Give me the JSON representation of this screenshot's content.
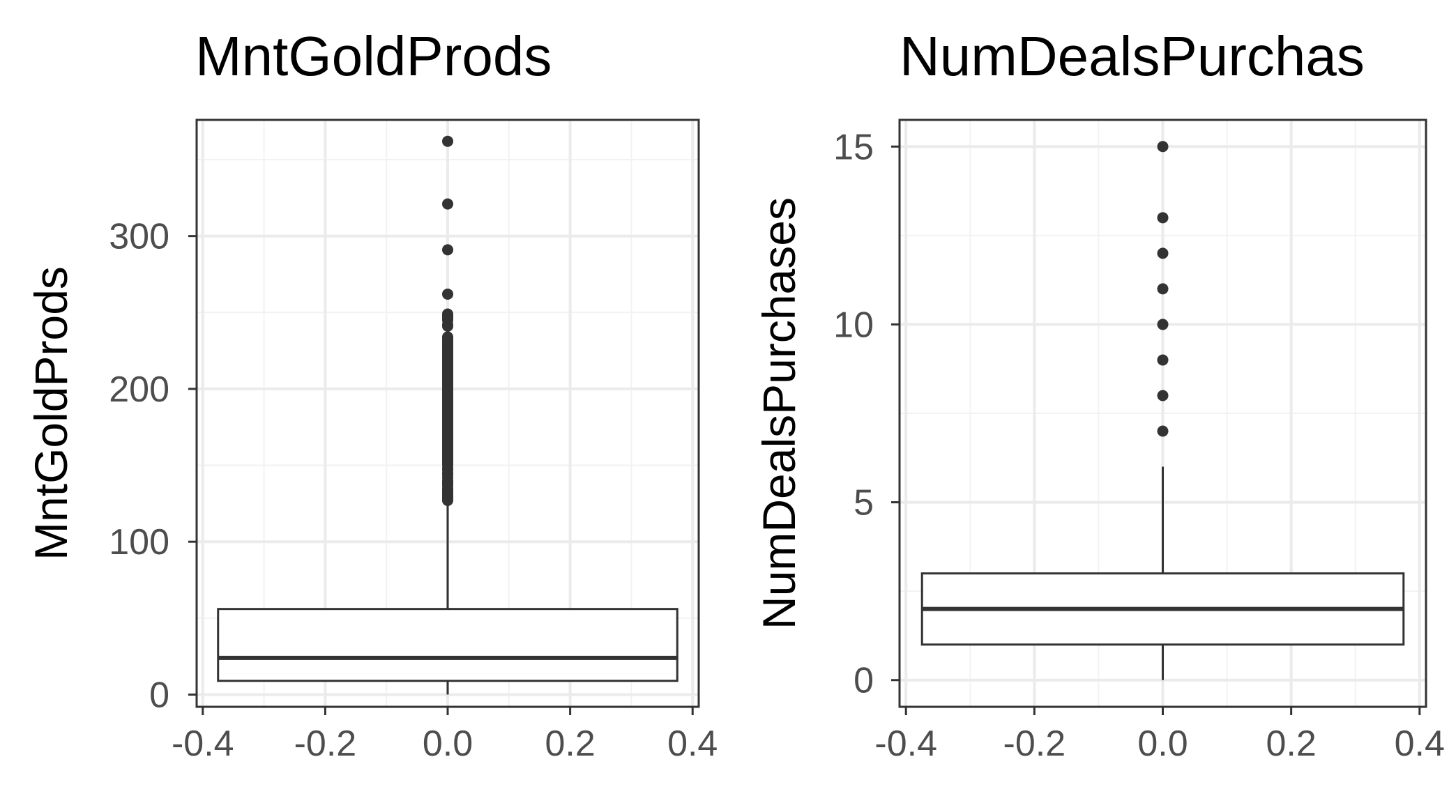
{
  "chart_data": [
    {
      "type": "box",
      "title": "MntGoldProds",
      "ylabel": "MntGoldProds",
      "xlabel": "",
      "xlim": [
        -0.41,
        0.41
      ],
      "ylim": [
        -8,
        376
      ],
      "x_ticks": [
        -0.4,
        -0.2,
        0.0,
        0.2,
        0.4
      ],
      "x_tick_labels": [
        "-0.4",
        "-0.2",
        "0.0",
        "0.2",
        "0.4"
      ],
      "y_ticks": [
        0,
        100,
        200,
        300
      ],
      "y_tick_labels": [
        "0",
        "100",
        "200",
        "300"
      ],
      "grid": true,
      "box": {
        "x_min": -0.375,
        "x_max": 0.375,
        "q1": 9,
        "median": 24,
        "q3": 56,
        "whisker_low": 0,
        "whisker_high": 126,
        "outliers": [
          127,
          128,
          129,
          130,
          131,
          132,
          133,
          134,
          135,
          137,
          138,
          139,
          140,
          142,
          144,
          145,
          147,
          148,
          150,
          151,
          152,
          153,
          154,
          155,
          156,
          157,
          158,
          159,
          160,
          161,
          162,
          163,
          164,
          165,
          166,
          167,
          168,
          169,
          170,
          171,
          172,
          173,
          174,
          175,
          176,
          177,
          178,
          179,
          180,
          181,
          182,
          183,
          184,
          185,
          186,
          187,
          188,
          189,
          190,
          191,
          192,
          193,
          194,
          195,
          196,
          197,
          198,
          199,
          200,
          201,
          202,
          203,
          204,
          205,
          206,
          207,
          208,
          209,
          210,
          211,
          212,
          213,
          214,
          215,
          216,
          217,
          218,
          219,
          220,
          221,
          222,
          223,
          224,
          225,
          226,
          227,
          228,
          229,
          230,
          231,
          232,
          233,
          234,
          241,
          242,
          245,
          246,
          247,
          248,
          249,
          262,
          291,
          321,
          362
        ]
      }
    },
    {
      "type": "box",
      "title": "NumDealsPurchas",
      "ylabel": "NumDealsPurchases",
      "xlabel": "",
      "xlim": [
        -0.41,
        0.41
      ],
      "ylim": [
        -0.75,
        15.75
      ],
      "x_ticks": [
        -0.4,
        -0.2,
        0.0,
        0.2,
        0.4
      ],
      "x_tick_labels": [
        "-0.4",
        "-0.2",
        "0.0",
        "0.2",
        "0.4"
      ],
      "y_ticks": [
        0,
        5,
        10,
        15
      ],
      "y_tick_labels": [
        "0",
        "5",
        "10",
        "15"
      ],
      "grid": true,
      "box": {
        "x_min": -0.375,
        "x_max": 0.375,
        "q1": 1,
        "median": 2,
        "q3": 3,
        "whisker_low": 0,
        "whisker_high": 6,
        "outliers": [
          7,
          8,
          9,
          10,
          11,
          12,
          13,
          15
        ]
      }
    }
  ]
}
